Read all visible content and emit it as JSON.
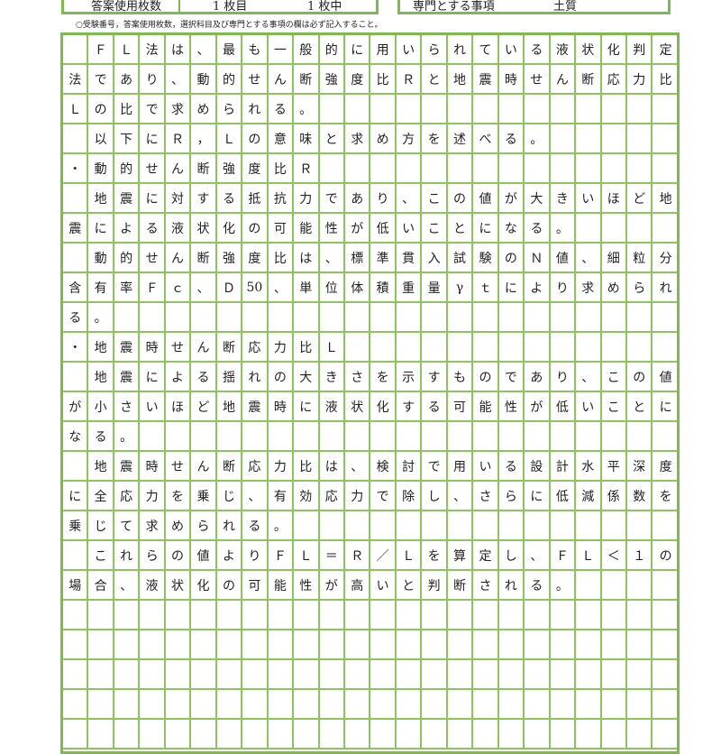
{
  "header": {
    "sheet_count_label": "答案使用枚数",
    "sheet_current": "1 枚目",
    "sheet_total": "1 枚中",
    "specialty_label": "専門とする事項",
    "specialty_value": "土質"
  },
  "note": "○受験番号，答案使用枚数，選択科目及び専門とする事項の欄は必ず記入すること。",
  "grid": {
    "columns": 24,
    "line_color": "#7dbb4e",
    "rows": [
      "　ＦＬ法は、最も一般的に用いられている液状化判定",
      "法であり、動的せん断強度比Ｒと地震時せん断応力比",
      "Ｌの比で求められる。",
      "　以下にＲ，Ｌの意味と求め方を述べる。",
      "・動的せん断強度比Ｒ",
      "　地震に対する抵抗力であり、この値が大きいほど地",
      "震による液状化の可能性が低いことになる。",
      "　動的せん断強度比は、標準貫入試験のＮ値、細粒分",
      "含有率Ｆｃ、Ｄ50、単位体積重量γｔにより求められ",
      "る。",
      "・地震時せん断応力比Ｌ",
      "　地震による揺れの大きさを示すものであり、この値",
      "が小さいほど地震時に液状化する可能性が低いことに",
      "なる。",
      "　地震時せん断応力比は、検討で用いる設計水平深度",
      "に全応力を乗じ、有効応力で除し、さらに低減係数を",
      "乗じて求められる。",
      "　これらの値よりＦＬ＝Ｒ／Ｌを算定し、ＦＬ＜１の",
      "場合、液状化の可能性が高いと判断される。",
      "",
      "",
      "",
      "",
      ""
    ]
  }
}
